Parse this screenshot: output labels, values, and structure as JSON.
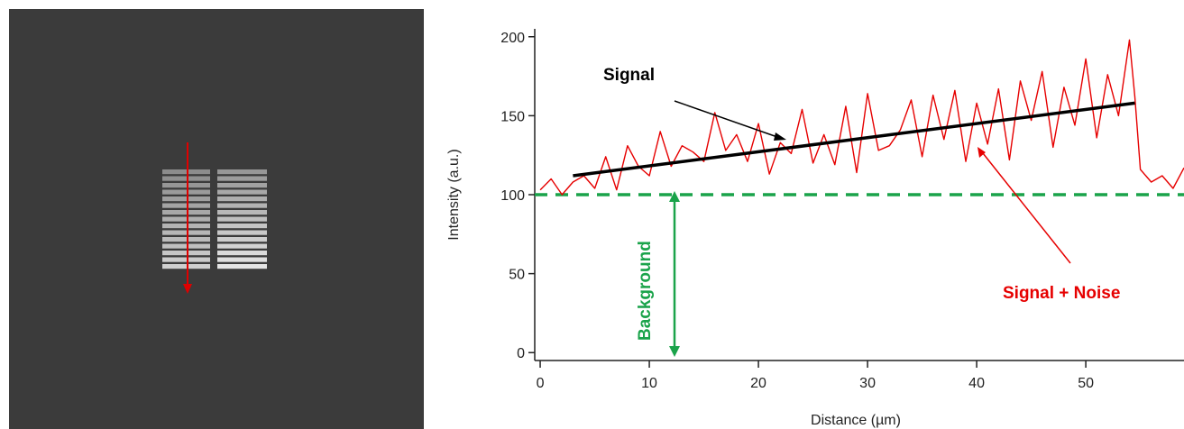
{
  "image_panel": {
    "colors": {
      "background": "#3b3b3b",
      "left_grating": "#cfcfcf",
      "right_grating": "#e4e4e4",
      "arrow": "#e00000"
    },
    "left_grating_bars": 15,
    "right_grating_bars": 15
  },
  "chart_data": {
    "type": "line",
    "xlabel": "Distance (µm)",
    "ylabel": "Intensity (a.u.)",
    "xlim": [
      -0.5,
      59
    ],
    "ylim": [
      -5,
      205
    ],
    "xticks": [
      0,
      10,
      20,
      30,
      40,
      50
    ],
    "yticks": [
      0,
      50,
      100,
      150,
      200
    ],
    "series": [
      {
        "color": "#e60000",
        "style": "line",
        "x": [
          0,
          1,
          2,
          3,
          4,
          5,
          6,
          7,
          8,
          9,
          10,
          11,
          12,
          13,
          14,
          15,
          16,
          17,
          18,
          19,
          20,
          21,
          22,
          23,
          24,
          25,
          26,
          27,
          28,
          29,
          30,
          31,
          32,
          33,
          34,
          35,
          36,
          37,
          38,
          39,
          40,
          41,
          42,
          43,
          44,
          45,
          46,
          47,
          48,
          49,
          50,
          51,
          52,
          53,
          54,
          54.5,
          55,
          56,
          57,
          58,
          59
        ],
        "y": [
          103,
          110,
          100,
          108,
          112,
          104,
          124,
          103,
          131,
          118,
          112,
          140,
          118,
          131,
          127,
          121,
          152,
          128,
          138,
          121,
          145,
          113,
          133,
          126,
          154,
          120,
          138,
          119,
          156,
          114,
          164,
          128,
          131,
          141,
          160,
          124,
          163,
          135,
          166,
          121,
          158,
          132,
          167,
          122,
          172,
          147,
          178,
          130,
          168,
          144,
          186,
          136,
          176,
          150,
          198,
          162,
          116,
          108,
          112,
          104,
          117
        ]
      },
      {
        "color": "#000000",
        "style": "line",
        "x": [
          3,
          54.5
        ],
        "y": [
          112,
          158
        ]
      },
      {
        "color": "#1aa34a",
        "style": "dashed",
        "x": [
          -0.5,
          59
        ],
        "y": [
          100,
          100
        ]
      }
    ],
    "annotations": {
      "signal": "Signal",
      "signal_noise": "Signal + Noise",
      "background": "Background"
    },
    "colors": {
      "signal": "#000000",
      "signal_noise": "#e60000",
      "background": "#1aa34a",
      "axis": "#222222"
    }
  }
}
